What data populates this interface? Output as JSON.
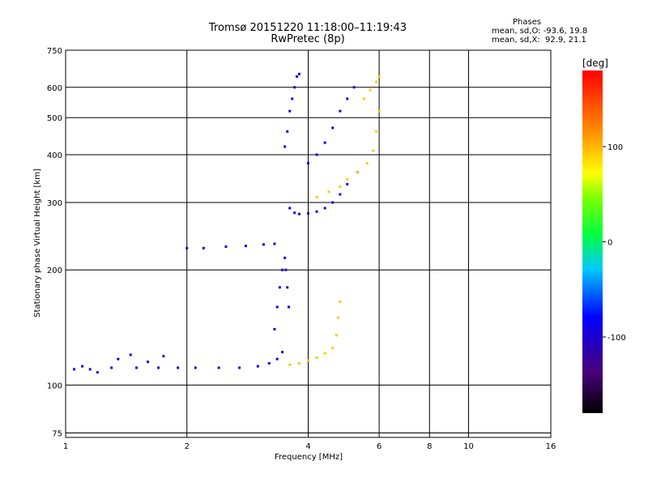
{
  "chart_data": {
    "type": "scatter",
    "title": "Tromsø 20151220 11:18:00–11:19:43",
    "subtitle": "RwPretec (8p)",
    "xlabel": "Frequency [MHz]",
    "ylabel": "Stationary phase Virtual Height [km]",
    "x_scale": "log",
    "y_scale": "log",
    "xlim": [
      1,
      16
    ],
    "ylim": [
      73,
      750
    ],
    "x_ticks": [
      1,
      2,
      4,
      6,
      8,
      10,
      16
    ],
    "x_tick_labels": [
      "1",
      "2",
      "4",
      "6",
      "8",
      "10",
      "16"
    ],
    "y_ticks": [
      75,
      100,
      200,
      300,
      400,
      500,
      600,
      750
    ],
    "y_tick_labels": [
      "75",
      "100",
      "200",
      "300",
      "400",
      "500",
      "600",
      "750"
    ],
    "grid": true,
    "colorbar": {
      "label": "[deg]",
      "range": [
        -180,
        180
      ],
      "ticks": [
        100,
        0,
        -100
      ],
      "tick_labels": [
        "100",
        "0",
        "-100"
      ]
    },
    "stats": {
      "heading": "Phases",
      "line_o": "mean, sd,O: -93.6, 19.8",
      "line_x": "mean, sd,X:  92.9, 21.1"
    },
    "series": [
      {
        "name": "O",
        "phase_deg": -93.6,
        "traces": [
          {
            "x": [
              1.05,
              1.15,
              1.3,
              1.5,
              1.7,
              1.9,
              2.1,
              2.4,
              2.7,
              3.0,
              3.2,
              3.35,
              3.45
            ],
            "y": [
              110,
              110,
              111,
              111,
              111,
              111,
              111,
              111,
              111,
              112,
              114,
              117,
              122
            ]
          },
          {
            "x": [
              1.1,
              1.2,
              1.35,
              1.45,
              1.6,
              1.75
            ],
            "y": [
              112,
              108,
              117,
              120,
              115,
              119
            ]
          },
          {
            "x": [
              3.3,
              3.35,
              3.4,
              3.45,
              3.5,
              3.52,
              3.55,
              3.58
            ],
            "y": [
              140,
              160,
              180,
              200,
              215,
              200,
              180,
              160
            ]
          },
          {
            "x": [
              2.0,
              2.2,
              2.5,
              2.8,
              3.1,
              3.3
            ],
            "y": [
              228,
              228,
              230,
              231,
              233,
              234
            ]
          },
          {
            "x": [
              3.6,
              3.7,
              3.8,
              4.0,
              4.2,
              4.4,
              4.6,
              4.8,
              5.0,
              5.3
            ],
            "y": [
              290,
              282,
              280,
              281,
              284,
              290,
              300,
              315,
              335,
              360
            ]
          },
          {
            "x": [
              3.5,
              3.55,
              3.6,
              3.65,
              3.7,
              3.75,
              3.8
            ],
            "y": [
              420,
              460,
              520,
              560,
              600,
              640,
              650
            ]
          },
          {
            "x": [
              4.0,
              4.2,
              4.4,
              4.6,
              4.8,
              5.0,
              5.2
            ],
            "y": [
              380,
              400,
              430,
              470,
              520,
              560,
              600
            ]
          }
        ]
      },
      {
        "name": "X",
        "phase_deg": 92.9,
        "traces": [
          {
            "x": [
              3.6,
              3.8,
              4.0,
              4.2,
              4.4,
              4.6,
              4.7,
              4.75,
              4.8
            ],
            "y": [
              113,
              114,
              116,
              118,
              121,
              125,
              135,
              150,
              165
            ]
          },
          {
            "x": [
              4.2,
              4.5,
              4.8,
              5.0,
              5.3,
              5.6,
              5.8,
              5.9,
              6.0
            ],
            "y": [
              310,
              320,
              330,
              345,
              360,
              380,
              410,
              460,
              520
            ]
          },
          {
            "x": [
              5.5,
              5.7,
              5.9,
              6.0
            ],
            "y": [
              560,
              590,
              620,
              640
            ]
          }
        ]
      }
    ]
  }
}
